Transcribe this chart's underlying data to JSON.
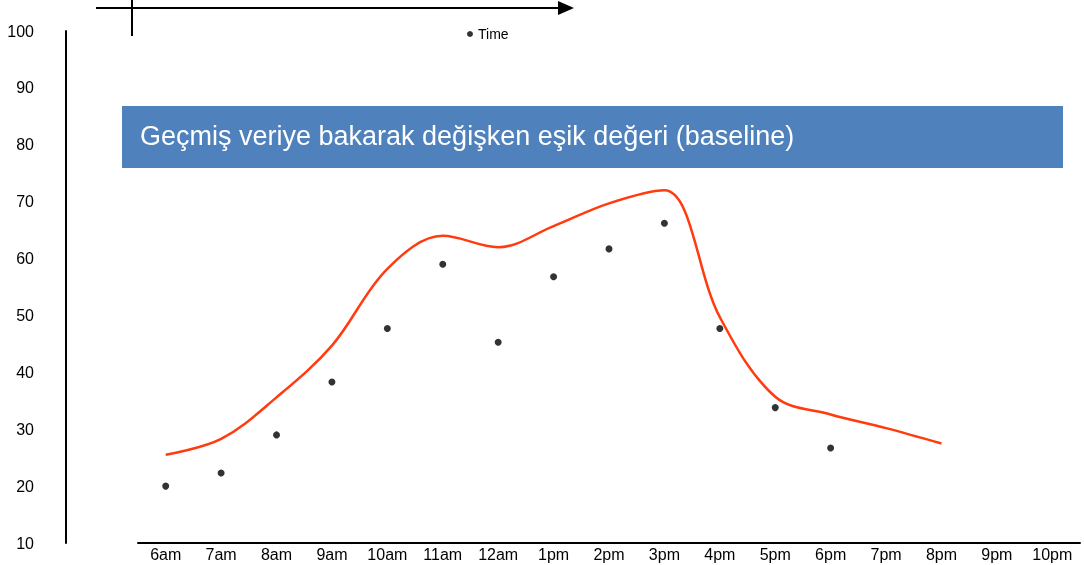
{
  "chart_data": {
    "type": "scatter",
    "title": "Geçmiş veriye bakarak değişken eşik değeri (baseline)",
    "categories": [
      "6am",
      "7am",
      "8am",
      "9am",
      "10am",
      "11am",
      "12am",
      "1pm",
      "2pm",
      "3pm",
      "4pm",
      "5pm",
      "6pm",
      "7pm",
      "8pm",
      "9pm",
      "10pm"
    ],
    "series": [
      {
        "name": "Time",
        "marker": "circle",
        "color": "#000000",
        "values": [
          20,
          22.3,
          29,
          38.3,
          47.7,
          59,
          45.3,
          56.8,
          61.7,
          66.2,
          47.7,
          33.8,
          26.7,
          null,
          null,
          null,
          null
        ]
      },
      {
        "type": "line",
        "marker": "none",
        "color": "#ff3b0f",
        "values": [
          25.5,
          28.3,
          35.6,
          44.7,
          58.2,
          64,
          62,
          65.7,
          69.7,
          72,
          49.7,
          35.7,
          32.6,
          30.2,
          27.5,
          null,
          null
        ]
      }
    ],
    "ylim": [
      10,
      100
    ],
    "yticks": [
      10,
      20,
      30,
      40,
      50,
      60,
      70,
      80,
      90,
      100
    ],
    "grid": false,
    "legend": "top"
  }
}
